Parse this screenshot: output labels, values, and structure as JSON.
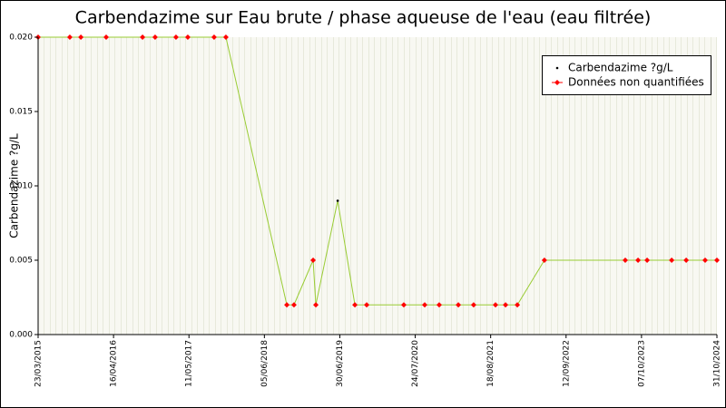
{
  "chart_data": {
    "type": "line",
    "title": "Carbendazime sur Eau brute / phase aqueuse de l'eau (eau filtrée)",
    "y_label": "Carbendazime ?g/L",
    "xlim": [
      "2015-03-23",
      "2024-10-31"
    ],
    "xticks": [
      {
        "value": "2015-03-23",
        "label": "23/03/2015"
      },
      {
        "value": "2016-04-16",
        "label": "16/04/2016"
      },
      {
        "value": "2017-05-11",
        "label": "11/05/2017"
      },
      {
        "value": "2018-06-05",
        "label": "05/06/2018"
      },
      {
        "value": "2019-06-30",
        "label": "30/06/2019"
      },
      {
        "value": "2020-07-24",
        "label": "24/07/2020"
      },
      {
        "value": "2021-08-18",
        "label": "18/08/2021"
      },
      {
        "value": "2022-09-12",
        "label": "12/09/2022"
      },
      {
        "value": "2023-10-07",
        "label": "07/10/2023"
      },
      {
        "value": "2024-10-31",
        "label": "31/10/2024"
      }
    ],
    "ylim": [
      0,
      0.02
    ],
    "yticks": [
      {
        "value": 0,
        "label": "0.000"
      },
      0.005,
      {
        "value": 0.01,
        "label": "0.010"
      },
      0.015,
      {
        "value": 0.02,
        "label": "0.020"
      }
    ],
    "grid": true,
    "legend": "top-right",
    "series": [
      {
        "name": "Carbendazime ?g/L",
        "color": "#000000",
        "line_color": "#99cc33",
        "x": [
          "2015-03-23",
          "2015-09-03",
          "2015-10-30",
          "2016-03-09",
          "2016-09-13",
          "2016-11-17",
          "2017-03-05",
          "2017-05-05",
          "2017-09-18",
          "2017-11-18",
          "2018-09-29",
          "2018-11-05",
          "2019-02-12",
          "2019-02-26",
          "2019-06-19",
          "2019-09-16",
          "2019-11-16",
          "2020-05-26",
          "2020-09-11",
          "2020-11-25",
          "2021-03-04",
          "2021-05-22",
          "2021-09-12",
          "2021-11-03",
          "2022-01-03",
          "2022-05-23",
          "2023-07-15",
          "2023-09-19",
          "2023-11-05",
          "2024-03-11",
          "2024-05-25",
          "2024-08-31",
          "2024-10-31"
        ],
        "values": [
          0.02,
          0.02,
          0.02,
          0.02,
          0.02,
          0.02,
          0.02,
          0.02,
          0.02,
          0.02,
          0.002,
          0.002,
          0.005,
          0.002,
          0.009,
          0.002,
          0.002,
          0.002,
          0.002,
          0.002,
          0.002,
          0.002,
          0.002,
          0.002,
          0.002,
          0.005,
          0.005,
          0.005,
          0.005,
          0.005,
          0.005,
          0.005,
          0.005
        ],
        "quantified": [
          false,
          false,
          false,
          false,
          false,
          false,
          false,
          false,
          false,
          false,
          false,
          false,
          false,
          false,
          true,
          false,
          false,
          false,
          false,
          false,
          false,
          false,
          false,
          false,
          false,
          false,
          false,
          false,
          false,
          false,
          false,
          false,
          false
        ]
      }
    ],
    "non_quantified_label": "Données non quantifiées",
    "non_quantified_color": "#ff0000"
  }
}
